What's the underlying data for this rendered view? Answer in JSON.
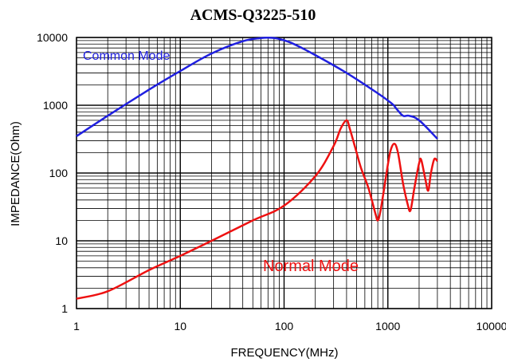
{
  "chart_data": {
    "type": "line",
    "title": "ACMS-Q3225-510",
    "xlabel": "FREQUENCY(MHz)",
    "ylabel": "IMPEDANCE(Ohm)",
    "x_scale": "log",
    "y_scale": "log",
    "xlim": [
      1,
      10000
    ],
    "ylim": [
      1,
      10000
    ],
    "x_ticks": [
      "1",
      "10",
      "100",
      "1000",
      "10000"
    ],
    "y_ticks": [
      "1",
      "10",
      "100",
      "1000",
      "10000"
    ],
    "grid": true,
    "colors": {
      "common": "#1f1fe0",
      "normal": "#ee1111",
      "grid": "#000000"
    },
    "series": [
      {
        "name": "Common Mode",
        "color": "#1f1fe0",
        "x": [
          1,
          2,
          5,
          10,
          20,
          40,
          60,
          75,
          90,
          120,
          200,
          400,
          800,
          1100,
          1200,
          1400,
          1600,
          2000,
          3000
        ],
        "y": [
          350,
          700,
          1700,
          3200,
          5800,
          8800,
          9800,
          9900,
          9500,
          8200,
          5500,
          3000,
          1500,
          1050,
          900,
          700,
          700,
          600,
          320
        ]
      },
      {
        "name": "Normal Mode",
        "color": "#ee1111",
        "x": [
          1,
          2,
          5,
          10,
          20,
          50,
          100,
          200,
          300,
          350,
          400,
          430,
          480,
          550,
          650,
          760,
          800,
          850,
          950,
          1050,
          1150,
          1250,
          1400,
          1550,
          1650,
          1800,
          2000,
          2100,
          2300,
          2450,
          2600,
          2800,
          3000
        ],
        "y": [
          1.4,
          1.8,
          3.7,
          6.0,
          10,
          20,
          33,
          90,
          250,
          450,
          600,
          450,
          250,
          120,
          60,
          25,
          20,
          28,
          80,
          200,
          270,
          200,
          70,
          35,
          28,
          60,
          140,
          155,
          80,
          55,
          100,
          160,
          150
        ]
      }
    ]
  }
}
